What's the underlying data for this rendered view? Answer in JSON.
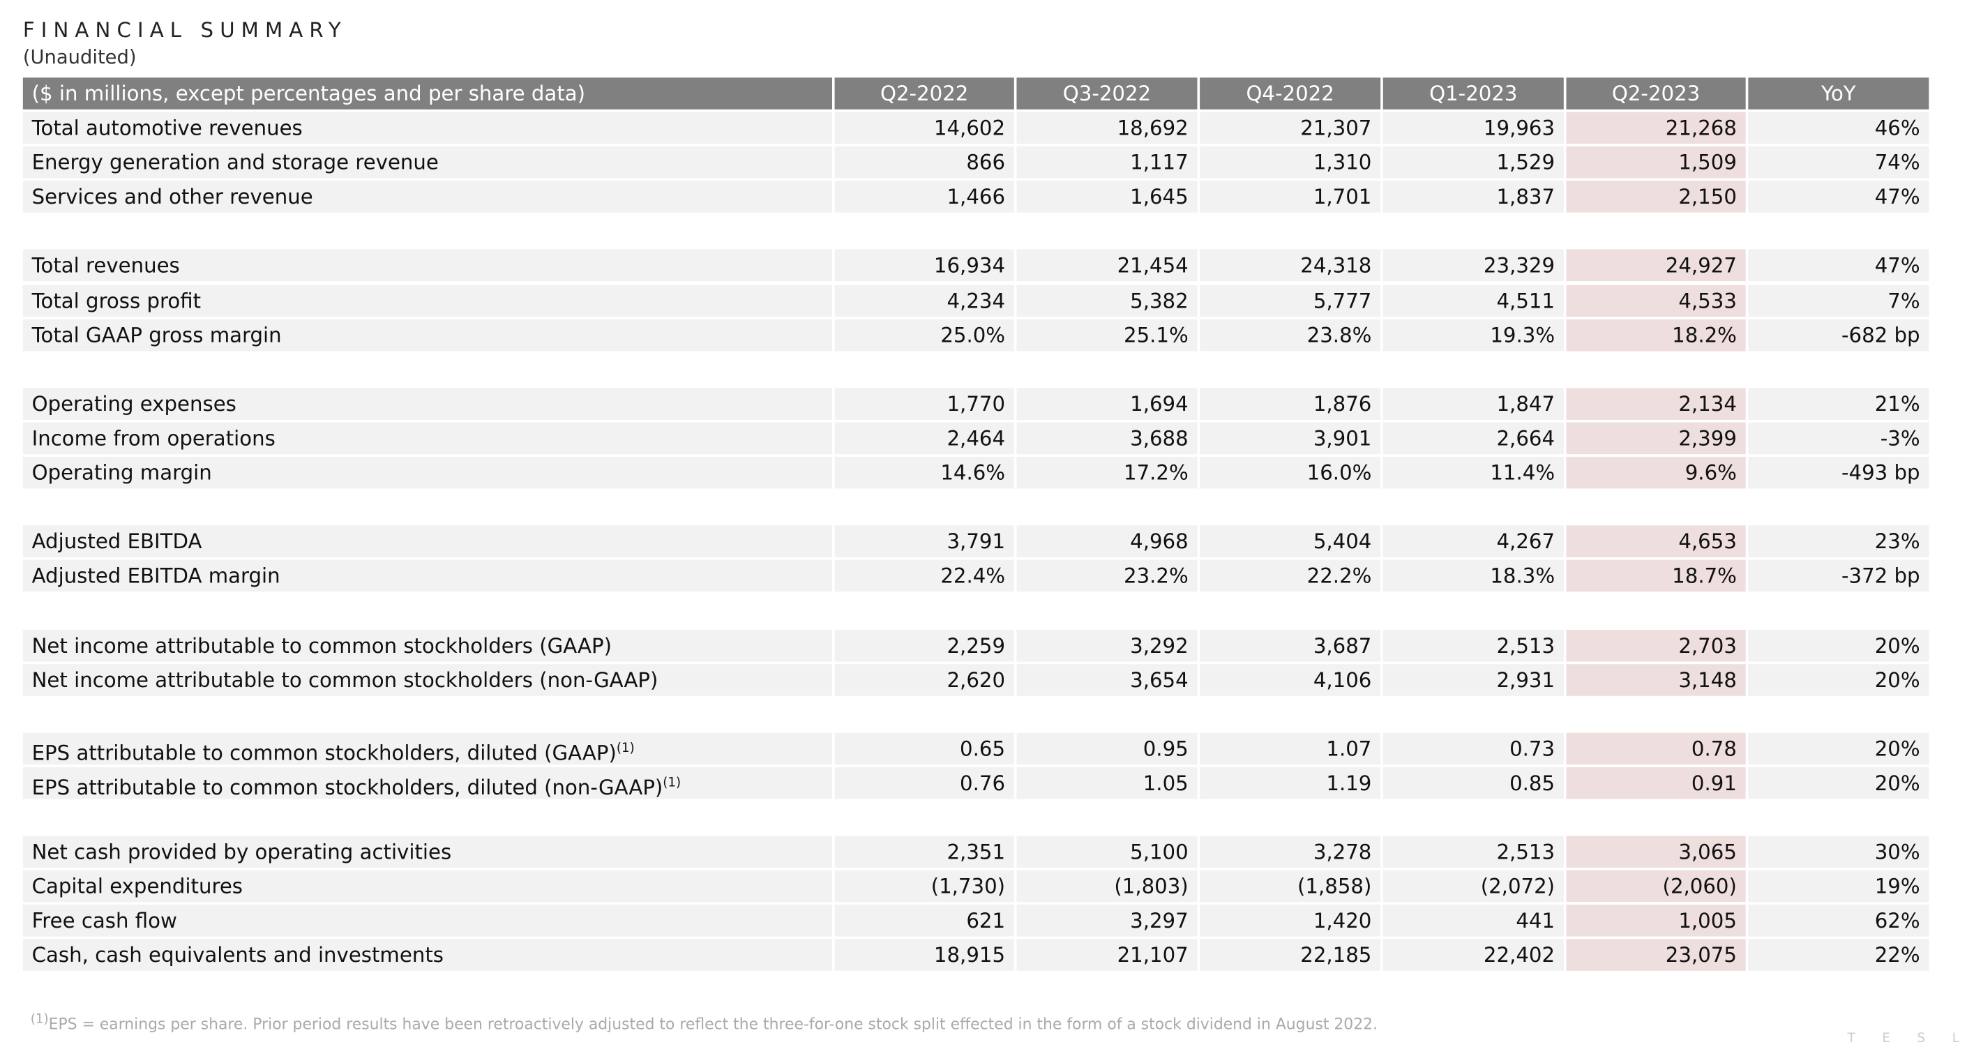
{
  "header": {
    "title": "FINANCIAL SUMMARY",
    "subtitle": "(Unaudited)"
  },
  "table": {
    "columns": [
      "($ in millions, except percentages and per share data)",
      "Q2-2022",
      "Q3-2022",
      "Q4-2022",
      "Q1-2023",
      "Q2-2023",
      "YoY"
    ],
    "sections": [
      {
        "rows": [
          {
            "label": "Total automotive revenues",
            "cells": [
              "14,602",
              "18,692",
              "21,307",
              "19,963",
              "21,268",
              "46%"
            ]
          },
          {
            "label": "Energy generation and storage revenue",
            "cells": [
              "866",
              "1,117",
              "1,310",
              "1,529",
              "1,509",
              "74%"
            ]
          },
          {
            "label": "Services and other revenue",
            "cells": [
              "1,466",
              "1,645",
              "1,701",
              "1,837",
              "2,150",
              "47%"
            ]
          }
        ]
      },
      {
        "rows": [
          {
            "label": "Total revenues",
            "cells": [
              "16,934",
              "21,454",
              "24,318",
              "23,329",
              "24,927",
              "47%"
            ]
          },
          {
            "label": "Total gross profit",
            "cells": [
              "4,234",
              "5,382",
              "5,777",
              "4,511",
              "4,533",
              "7%"
            ]
          },
          {
            "label": "Total GAAP gross margin",
            "cells": [
              "25.0%",
              "25.1%",
              "23.8%",
              "19.3%",
              "18.2%",
              "-682 bp"
            ]
          }
        ]
      },
      {
        "rows": [
          {
            "label": "Operating expenses",
            "cells": [
              "1,770",
              "1,694",
              "1,876",
              "1,847",
              "2,134",
              "21%"
            ]
          },
          {
            "label": "Income from operations",
            "cells": [
              "2,464",
              "3,688",
              "3,901",
              "2,664",
              "2,399",
              "-3%"
            ]
          },
          {
            "label": "Operating margin",
            "cells": [
              "14.6%",
              "17.2%",
              "16.0%",
              "11.4%",
              "9.6%",
              "-493 bp"
            ]
          }
        ]
      },
      {
        "rows": [
          {
            "label": "Adjusted EBITDA",
            "cells": [
              "3,791",
              "4,968",
              "5,404",
              "4,267",
              "4,653",
              "23%"
            ]
          },
          {
            "label": "Adjusted EBITDA margin",
            "cells": [
              "22.4%",
              "23.2%",
              "22.2%",
              "18.3%",
              "18.7%",
              "-372 bp"
            ]
          }
        ]
      },
      {
        "rows": [
          {
            "label": "Net income attributable to common stockholders (GAAP)",
            "cells": [
              "2,259",
              "3,292",
              "3,687",
              "2,513",
              "2,703",
              "20%"
            ]
          },
          {
            "label": "Net income attributable to common stockholders (non-GAAP)",
            "cells": [
              "2,620",
              "3,654",
              "4,106",
              "2,931",
              "3,148",
              "20%"
            ]
          }
        ]
      },
      {
        "rows": [
          {
            "label": "EPS attributable to common stockholders, diluted (GAAP)",
            "sup": "(1)",
            "cells": [
              "0.65",
              "0.95",
              "1.07",
              "0.73",
              "0.78",
              "20%"
            ]
          },
          {
            "label": "EPS attributable to common stockholders, diluted (non-GAAP)",
            "sup": "(1)",
            "cells": [
              "0.76",
              "1.05",
              "1.19",
              "0.85",
              "0.91",
              "20%"
            ]
          }
        ]
      },
      {
        "rows": [
          {
            "label": "Net cash provided by operating activities",
            "cells": [
              "2,351",
              "5,100",
              "3,278",
              "2,513",
              "3,065",
              "30%"
            ]
          },
          {
            "label": "Capital expenditures",
            "cells": [
              "(1,730)",
              "(1,803)",
              "(1,858)",
              "(2,072)",
              "(2,060)",
              "19%"
            ]
          },
          {
            "label": "Free cash flow",
            "cells": [
              "621",
              "3,297",
              "1,420",
              "441",
              "1,005",
              "62%"
            ]
          },
          {
            "label": "Cash, cash equivalents and investments",
            "cells": [
              "18,915",
              "21,107",
              "22,185",
              "22,402",
              "23,075",
              "22%"
            ]
          }
        ]
      }
    ]
  },
  "footnote": {
    "marker": "(1)",
    "text": "EPS = earnings per share. Prior period results have been retroactively adjusted to reflect the three-for-one stock split effected in the form of a stock dividend in August 2022."
  },
  "logo": "T E S L A"
}
